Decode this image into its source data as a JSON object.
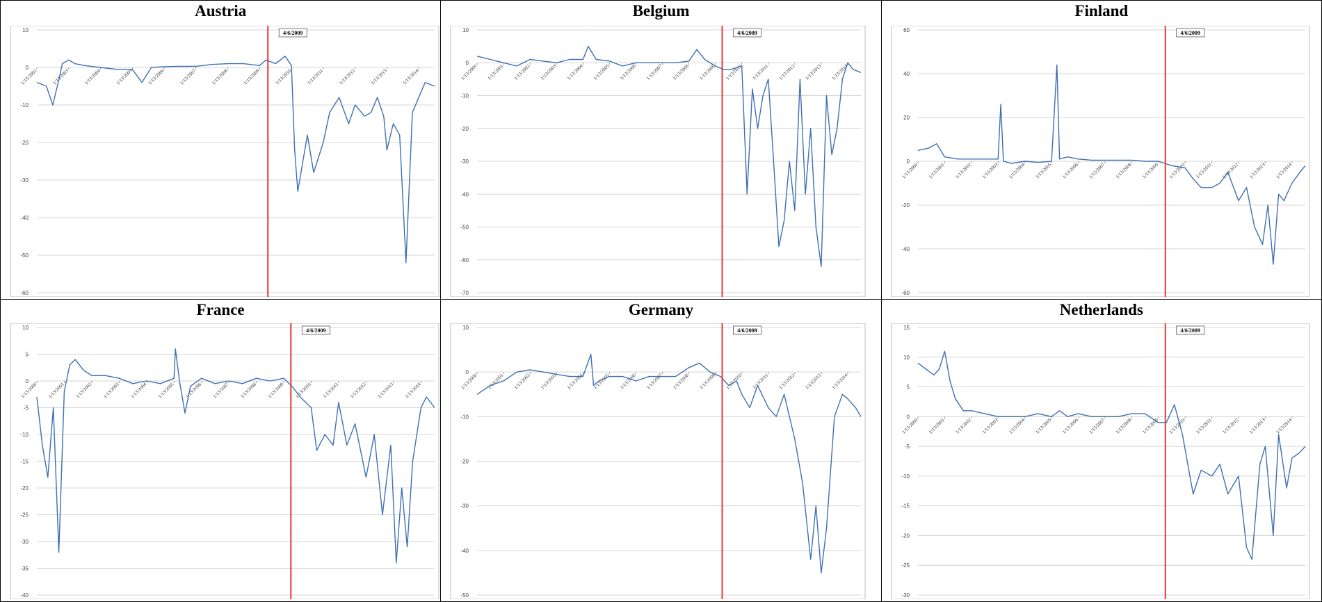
{
  "marker_label": "4/6/2009",
  "colors": {
    "series": "#3d6fb4",
    "marker": "#e53935",
    "grid": "#d4d4d4"
  },
  "chart_data": [
    {
      "type": "line",
      "title": "Austria",
      "xlabel": "",
      "ylabel": "",
      "ylim": [
        -60,
        10
      ],
      "yticks": [
        10,
        0,
        -10,
        -20,
        -30,
        -40,
        -50,
        -60
      ],
      "xlim": [
        2002,
        2014.5
      ],
      "x_tick_labels": [
        "1/13/2002",
        "1/13/2003",
        "1/13/2004",
        "1/13/2005",
        "1/13/2006",
        "1/13/2007",
        "1/13/2008",
        "1/13/2009",
        "1/13/2010",
        "1/13/2011",
        "1/13/2012",
        "1/13/2013",
        "1/13/2014"
      ],
      "grid": true,
      "legend": "none",
      "marker_x": 2009.26,
      "x": [
        2002.0,
        2002.3,
        2002.5,
        2002.7,
        2002.8,
        2003.0,
        2003.2,
        2003.5,
        2004.0,
        2004.5,
        2005.0,
        2005.3,
        2005.6,
        2006.0,
        2006.5,
        2007.0,
        2007.5,
        2008.0,
        2008.5,
        2009.0,
        2009.2,
        2009.5,
        2009.8,
        2010.0,
        2010.1,
        2010.2,
        2010.5,
        2010.7,
        2011.0,
        2011.2,
        2011.5,
        2011.8,
        2012.0,
        2012.3,
        2012.5,
        2012.7,
        2012.9,
        2013.0,
        2013.2,
        2013.4,
        2013.6,
        2013.8,
        2014.0,
        2014.2,
        2014.5
      ],
      "y": [
        -4,
        -5,
        -10,
        -3,
        1,
        2,
        1,
        0.5,
        0,
        -0.5,
        -0.5,
        -4,
        0,
        0.2,
        0.3,
        0.3,
        0.8,
        1,
        1,
        0.5,
        2,
        1,
        3,
        0.5,
        -22,
        -33,
        -18,
        -28,
        -20,
        -12,
        -8,
        -15,
        -10,
        -13,
        -12,
        -8,
        -13,
        -22,
        -15,
        -18,
        -52,
        -12,
        -8,
        -4,
        -5
      ]
    },
    {
      "type": "line",
      "title": "Belgium",
      "xlabel": "",
      "ylabel": "",
      "ylim": [
        -70,
        10
      ],
      "yticks": [
        10,
        0,
        -10,
        -20,
        -30,
        -40,
        -50,
        -60,
        -70
      ],
      "xlim": [
        2000,
        2014.5
      ],
      "x_tick_labels": [
        "1/13/2000",
        "1/13/2001",
        "1/13/2002",
        "1/13/2003",
        "1/13/2004",
        "1/13/2005",
        "1/13/2006",
        "1/13/2007",
        "1/13/2008",
        "1/13/2009",
        "1/13/2010",
        "1/13/2011",
        "1/13/2012",
        "1/13/2013",
        "1/13/2014"
      ],
      "grid": true,
      "legend": "none",
      "marker_x": 2009.26,
      "x": [
        2000.0,
        2000.5,
        2001.0,
        2001.5,
        2002.0,
        2002.5,
        2003.0,
        2003.5,
        2004.0,
        2004.2,
        2004.5,
        2005.0,
        2005.5,
        2006.0,
        2006.5,
        2007.0,
        2007.5,
        2008.0,
        2008.3,
        2008.6,
        2009.0,
        2009.3,
        2009.6,
        2010.0,
        2010.2,
        2010.4,
        2010.6,
        2010.8,
        2011.0,
        2011.2,
        2011.4,
        2011.6,
        2011.8,
        2012.0,
        2012.2,
        2012.4,
        2012.6,
        2012.8,
        2013.0,
        2013.2,
        2013.4,
        2013.6,
        2013.8,
        2014.0,
        2014.2,
        2014.5
      ],
      "y": [
        2,
        1,
        0,
        -1,
        1,
        0.5,
        0,
        1,
        1,
        5,
        1,
        0.5,
        -1,
        0,
        0,
        0,
        0,
        0.5,
        4,
        1,
        -1,
        -2,
        -2,
        -1,
        -40,
        -8,
        -20,
        -10,
        -5,
        -30,
        -56,
        -48,
        -30,
        -45,
        -5,
        -40,
        -20,
        -50,
        -62,
        -10,
        -28,
        -20,
        -5,
        0,
        -2,
        -3
      ]
    },
    {
      "type": "line",
      "title": "Finland",
      "xlabel": "",
      "ylabel": "",
      "ylim": [
        -60,
        60
      ],
      "yticks": [
        60,
        40,
        20,
        0,
        -20,
        -40,
        -60
      ],
      "xlim": [
        2000,
        2014.5
      ],
      "x_tick_labels": [
        "1/13/2000",
        "1/13/2001",
        "1/13/2002",
        "1/13/2003",
        "1/13/2004",
        "1/13/2005",
        "1/13/2006",
        "1/13/2007",
        "1/13/2008",
        "1/13/2009",
        "1/13/2010",
        "1/13/2011",
        "1/13/2012",
        "1/13/2013",
        "1/13/2014"
      ],
      "grid": true,
      "legend": "none",
      "marker_x": 2009.26,
      "x": [
        2000.0,
        2000.4,
        2000.7,
        2001.0,
        2001.5,
        2002.0,
        2002.5,
        2003.0,
        2003.1,
        2003.2,
        2003.5,
        2004.0,
        2004.5,
        2005.0,
        2005.2,
        2005.3,
        2005.6,
        2006.0,
        2006.5,
        2007.0,
        2007.5,
        2008.0,
        2008.5,
        2009.0,
        2009.5,
        2010.0,
        2010.3,
        2010.6,
        2011.0,
        2011.3,
        2011.6,
        2012.0,
        2012.3,
        2012.6,
        2012.9,
        2013.1,
        2013.3,
        2013.5,
        2013.7,
        2014.0,
        2014.3,
        2014.5
      ],
      "y": [
        5,
        6,
        8,
        2,
        1,
        1,
        1,
        1,
        26,
        0,
        -1,
        0,
        -0.5,
        0,
        44,
        1,
        2,
        1,
        0.5,
        0.5,
        0.5,
        0.5,
        0,
        0,
        -2,
        -3,
        -8,
        -12,
        -12,
        -10,
        -5,
        -18,
        -12,
        -30,
        -38,
        -20,
        -47,
        -15,
        -18,
        -10,
        -5,
        -2
      ]
    },
    {
      "type": "line",
      "title": "France",
      "xlabel": "",
      "ylabel": "",
      "ylim": [
        -40,
        10
      ],
      "yticks": [
        10,
        5,
        0,
        -5,
        -10,
        -15,
        -20,
        -25,
        -30,
        -35,
        -40
      ],
      "xlim": [
        2000,
        2014.5
      ],
      "x_tick_labels": [
        "1/13/2000",
        "1/13/2001",
        "1/13/2002",
        "1/13/2003",
        "1/13/2004",
        "1/13/2005",
        "1/13/2006",
        "1/13/2007",
        "1/13/2008",
        "1/13/2009",
        "1/13/2010",
        "1/13/2011",
        "1/13/2012",
        "1/13/2013",
        "1/13/2014"
      ],
      "grid": true,
      "legend": "none",
      "marker_x": 2009.26,
      "x": [
        2000.0,
        2000.2,
        2000.4,
        2000.6,
        2000.8,
        2001.0,
        2001.2,
        2001.4,
        2001.7,
        2002.0,
        2002.5,
        2003.0,
        2003.5,
        2004.0,
        2004.5,
        2005.0,
        2005.05,
        2005.2,
        2005.4,
        2005.6,
        2006.0,
        2006.5,
        2007.0,
        2007.5,
        2008.0,
        2008.5,
        2009.0,
        2009.3,
        2009.6,
        2010.0,
        2010.2,
        2010.5,
        2010.8,
        2011.0,
        2011.3,
        2011.6,
        2012.0,
        2012.3,
        2012.6,
        2012.9,
        2013.1,
        2013.3,
        2013.5,
        2013.7,
        2014.0,
        2014.2,
        2014.5
      ],
      "y": [
        -3,
        -12,
        -18,
        -5,
        -32,
        -2,
        3,
        4,
        2,
        1,
        1,
        0.5,
        -0.5,
        0,
        -0.5,
        0.5,
        6,
        0,
        -6,
        -1,
        0.5,
        -0.5,
        0,
        -0.5,
        0.5,
        0,
        0.5,
        -1,
        -3,
        -5,
        -13,
        -10,
        -12,
        -4,
        -12,
        -8,
        -18,
        -10,
        -25,
        -12,
        -34,
        -20,
        -31,
        -15,
        -5,
        -3,
        -5
      ]
    },
    {
      "type": "line",
      "title": "Germany",
      "xlabel": "",
      "ylabel": "",
      "ylim": [
        -50,
        10
      ],
      "yticks": [
        10,
        0,
        -10,
        -20,
        -30,
        -40,
        -50
      ],
      "xlim": [
        2000,
        2014.5
      ],
      "x_tick_labels": [
        "1/13/2000",
        "1/13/2001",
        "1/13/2002",
        "1/13/2003",
        "1/13/2004",
        "1/13/2005",
        "1/13/2006",
        "1/13/2007",
        "1/13/2008",
        "1/13/2009",
        "1/13/2010",
        "1/13/2011",
        "1/13/2012",
        "1/13/2013",
        "1/13/2014"
      ],
      "grid": true,
      "legend": "none",
      "marker_x": 2009.26,
      "x": [
        2000.0,
        2000.5,
        2001.0,
        2001.5,
        2002.0,
        2002.5,
        2003.0,
        2003.5,
        2004.0,
        2004.3,
        2004.4,
        2004.6,
        2005.0,
        2005.5,
        2006.0,
        2006.5,
        2007.0,
        2007.5,
        2008.0,
        2008.4,
        2008.8,
        2009.2,
        2009.5,
        2009.8,
        2010.0,
        2010.3,
        2010.6,
        2011.0,
        2011.3,
        2011.6,
        2012.0,
        2012.3,
        2012.6,
        2012.8,
        2013.0,
        2013.2,
        2013.5,
        2013.8,
        2014.0,
        2014.3,
        2014.5
      ],
      "y": [
        -5,
        -3,
        -2,
        0,
        0.5,
        0,
        -0.5,
        -1,
        -1,
        4,
        -3,
        -2,
        -1,
        -1,
        -2,
        -1,
        -1,
        -1,
        1,
        2,
        0,
        -1,
        -3,
        -2,
        -5,
        -8,
        -3,
        -8,
        -10,
        -5,
        -15,
        -25,
        -42,
        -30,
        -45,
        -35,
        -10,
        -5,
        -6,
        -8,
        -10
      ]
    },
    {
      "type": "line",
      "title": "Netherlands",
      "xlabel": "",
      "ylabel": "",
      "ylim": [
        -30,
        15
      ],
      "yticks": [
        15,
        10,
        5,
        0,
        -5,
        -10,
        -15,
        -20,
        -25,
        -30
      ],
      "xlim": [
        2000,
        2014.5
      ],
      "x_tick_labels": [
        "1/13/2000",
        "1/13/2001",
        "1/13/2002",
        "1/13/2003",
        "1/13/2004",
        "1/13/2005",
        "1/13/2006",
        "1/13/2007",
        "1/13/2008",
        "1/13/2009",
        "1/13/2010",
        "1/13/2011",
        "1/13/2012",
        "1/13/2013",
        "1/13/2014"
      ],
      "grid": true,
      "legend": "none",
      "marker_x": 2009.26,
      "x": [
        2000.0,
        2000.3,
        2000.6,
        2000.8,
        2001.0,
        2001.2,
        2001.4,
        2001.7,
        2002.0,
        2002.5,
        2003.0,
        2003.5,
        2004.0,
        2004.5,
        2005.0,
        2005.3,
        2005.6,
        2006.0,
        2006.5,
        2007.0,
        2007.5,
        2008.0,
        2008.5,
        2009.0,
        2009.3,
        2009.6,
        2009.9,
        2010.1,
        2010.3,
        2010.6,
        2011.0,
        2011.3,
        2011.6,
        2012.0,
        2012.3,
        2012.5,
        2012.8,
        2013.0,
        2013.3,
        2013.5,
        2013.8,
        2014.0,
        2014.3,
        2014.5
      ],
      "y": [
        9,
        8,
        7,
        8,
        11,
        6,
        3,
        1,
        1,
        0.5,
        0,
        0,
        0,
        0.5,
        0,
        1,
        0,
        0.5,
        0,
        0,
        0,
        0.5,
        0.5,
        -1,
        -1,
        2,
        -3,
        -8,
        -13,
        -9,
        -10,
        -8,
        -13,
        -10,
        -22,
        -24,
        -8,
        -5,
        -20,
        -3,
        -12,
        -7,
        -6,
        -5
      ]
    }
  ]
}
